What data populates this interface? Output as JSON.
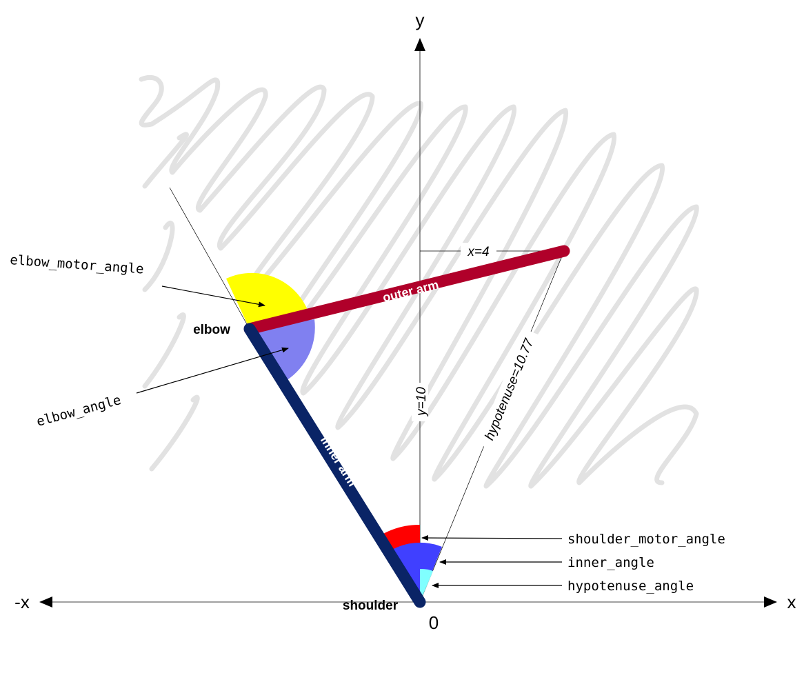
{
  "axes": {
    "y_label": "y",
    "x_label": "x",
    "neg_x_label": "-x",
    "origin_label": "0"
  },
  "joints": {
    "elbow": "elbow",
    "shoulder": "shoulder"
  },
  "arms": {
    "outer": "outer arm",
    "inner": "inner arm"
  },
  "dimensions": {
    "x": "x=4",
    "y": "y=10",
    "hypotenuse": "hypotenuse=10.77"
  },
  "angle_labels": {
    "elbow_motor_angle": "elbow_motor_angle",
    "elbow_angle": "elbow_angle",
    "shoulder_motor_angle": "shoulder_motor_angle",
    "inner_angle": "inner_angle",
    "hypotenuse_angle": "hypotenuse_angle"
  },
  "colors": {
    "outer_arm": "#b0002a",
    "inner_arm": "#0a2466",
    "elbow_motor_angle": "#ffff00",
    "elbow_angle": "#8080f0",
    "shoulder_motor_angle": "#ff0000",
    "inner_angle": "#4040ff",
    "hypotenuse_angle": "#80ffff",
    "workspace_scribble": "#e2e2e2"
  }
}
